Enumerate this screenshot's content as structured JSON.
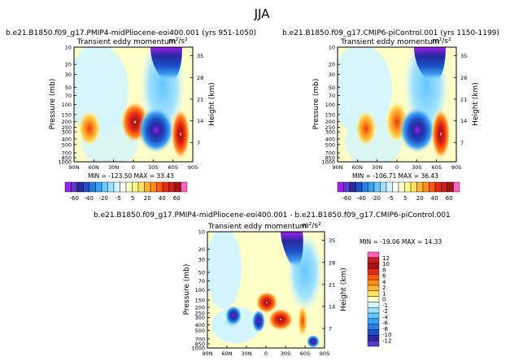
{
  "page": {
    "season": "JJA"
  },
  "chart_data": [
    {
      "type": "heatmap",
      "id": "panel1",
      "title": "b.e21.B1850.f09_g17.PMIP4-midPliocene-eoi400.001 (yrs 951-1050)",
      "subtitle": "Transient eddy momentum",
      "units": "m²/s²",
      "ylabel": "Pressure (mb)",
      "y2label": "Height (km)",
      "x_ticks": [
        "90N",
        "60N",
        "30N",
        "0",
        "30S",
        "60S",
        "90S"
      ],
      "y_ticks": [
        "10",
        "20",
        "30",
        "50",
        "70",
        "100",
        "150",
        "200",
        "250",
        "300",
        "400",
        "500",
        "700",
        "850",
        "1000"
      ],
      "height_ticks": [
        "35",
        "28",
        "21",
        "14",
        "7"
      ],
      "stats": "MIN = -123.50   MAX = 33.43",
      "fields": [
        {
          "lat": 10,
          "p": 150,
          "value": 22
        },
        {
          "lat": -10,
          "p": 150,
          "value": 33.43
        },
        {
          "lat": -40,
          "p": 250,
          "value": -123.5
        },
        {
          "lat": -55,
          "p": 15,
          "value": -80
        },
        {
          "lat": -65,
          "p": 250,
          "value": 30
        }
      ]
    },
    {
      "type": "heatmap",
      "id": "panel2",
      "title": "b.e21.B1850.f09_g17.CMIP6-piControl.001 (yrs 1150-1199)",
      "subtitle": "Transient eddy momentum",
      "units": "m²/s²",
      "ylabel": "Pressure (mb)",
      "y2label": "Height (km)",
      "x_ticks": [
        "90N",
        "60N",
        "30N",
        "0",
        "30S",
        "60S",
        "90S"
      ],
      "y_ticks": [
        "10",
        "20",
        "30",
        "50",
        "70",
        "100",
        "150",
        "200",
        "250",
        "300",
        "400",
        "500",
        "700",
        "850",
        "1000"
      ],
      "height_ticks": [
        "35",
        "28",
        "21",
        "14",
        "7"
      ],
      "stats": "MIN = -106.71   MAX = 36.43",
      "fields": [
        {
          "lat": 10,
          "p": 150,
          "value": 18
        },
        {
          "lat": -10,
          "p": 150,
          "value": 30
        },
        {
          "lat": -40,
          "p": 250,
          "value": -106.71
        },
        {
          "lat": -55,
          "p": 15,
          "value": -75
        },
        {
          "lat": -65,
          "p": 250,
          "value": 36.43
        }
      ]
    },
    {
      "type": "heatmap",
      "id": "panel3",
      "title": "b.e21.B1850.f09_g17.PMIP4-midPliocene-eoi400.001 - b.e21.B1850.f09_g17.CMIP6-piControl.001",
      "subtitle": "Transient eddy momentum",
      "units": "m²/s²",
      "ylabel": "Pressure (mb)",
      "y2label": "Height (km)",
      "x_ticks": [
        "90N",
        "60N",
        "30N",
        "0",
        "30S",
        "60S",
        "90S"
      ],
      "y_ticks": [
        "10",
        "20",
        "30",
        "50",
        "70",
        "100",
        "150",
        "200",
        "250",
        "300",
        "400",
        "500",
        "700",
        "850",
        "1000"
      ],
      "height_ticks": [
        "35",
        "28",
        "21",
        "14",
        "7"
      ],
      "stats": "MIN = -19.06   MAX = 14.33",
      "fields": [
        {
          "lat": 0,
          "p": 150,
          "value": 12
        },
        {
          "lat": -20,
          "p": 250,
          "value": 14.33
        },
        {
          "lat": -45,
          "p": 20,
          "value": -19.06
        },
        {
          "lat": 60,
          "p": 300,
          "value": -8
        }
      ]
    }
  ],
  "colorbar_main": {
    "labels": [
      "-60",
      "-40",
      "-20",
      "-5",
      "5",
      "20",
      "40",
      "60"
    ],
    "colors": [
      "#a020f0",
      "#5a3cc8",
      "#2828a0",
      "#1e50c8",
      "#2d7de1",
      "#3ca0f0",
      "#64c8ff",
      "#a0e1ff",
      "#d2f5ff",
      "#ffffff",
      "#ffffc8",
      "#fffa8c",
      "#ffe164",
      "#ffb432",
      "#ff8c1e",
      "#ff5a14",
      "#e62814",
      "#c81e1e",
      "#a01414",
      "#ff64c8"
    ]
  },
  "colorbar_diff": {
    "labels": [
      "12",
      "10",
      "8",
      "6",
      "4",
      "2",
      "1",
      "0",
      "-1",
      "-2",
      "-4",
      "-6",
      "-8",
      "-10",
      "-12"
    ],
    "colors": [
      "#ff64b4",
      "#c81e1e",
      "#a01414",
      "#e62814",
      "#ff5a14",
      "#ff8c1e",
      "#ffb432",
      "#ffe164",
      "#ffffc8",
      "#d2f5ff",
      "#a0e1ff",
      "#64c8ff",
      "#3ca0f0",
      "#2d7de1",
      "#1e50c8",
      "#2828a0",
      "#5a3cc8"
    ]
  }
}
